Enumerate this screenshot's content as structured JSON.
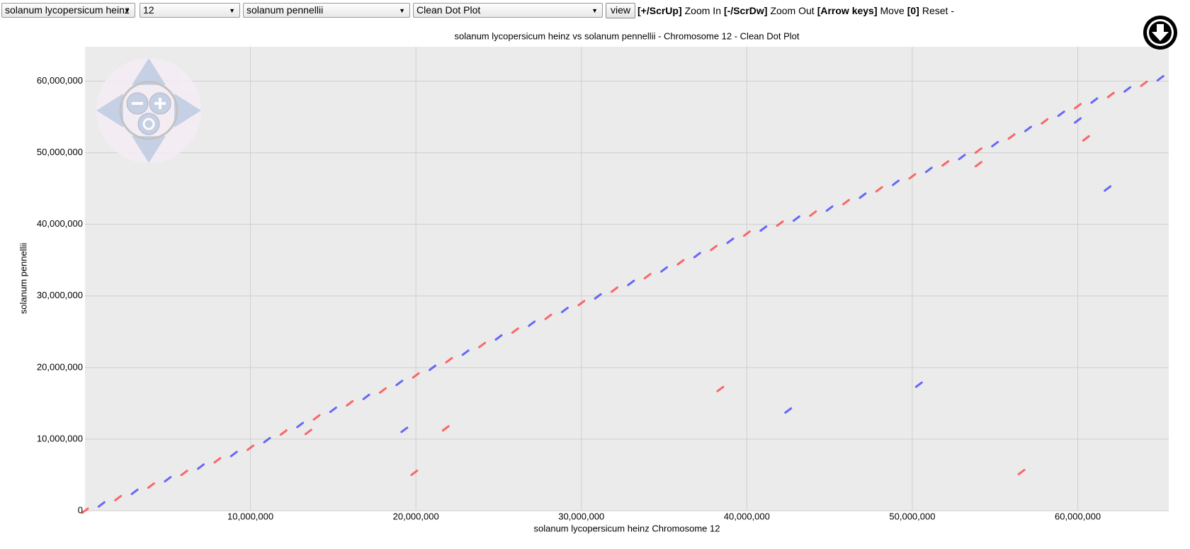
{
  "toolbar": {
    "reference_genome": "solanum lycopersicum heinz",
    "chromosome": "12",
    "query_genome": "solanum pennellii",
    "plot_type": "Clean Dot Plot",
    "button": "view",
    "help": [
      {
        "key": "[+/ScrUp]",
        "action": "Zoom In"
      },
      {
        "key": "[-/ScrDw]",
        "action": "Zoom Out"
      },
      {
        "key": "[Arrow keys]",
        "action": "Move"
      },
      {
        "key": "[0]",
        "action": "Reset -"
      }
    ]
  },
  "chart_data": {
    "type": "scatter",
    "title": "solanum lycopersicum heinz vs solanum pennellii - Chromosome 12 - Clean Dot Plot",
    "x_label": "solanum lycopersicum heinz Chromosome 12",
    "y_label": "solanum pennellii",
    "xlim": [
      0,
      65500000
    ],
    "ylim": [
      0,
      64800000
    ],
    "xticks": [
      {
        "value": 10000000,
        "label": "10,000,000"
      },
      {
        "value": 20000000,
        "label": "20,000,000"
      },
      {
        "value": 30000000,
        "label": "30,000,000"
      },
      {
        "value": 40000000,
        "label": "40,000,000"
      },
      {
        "value": 50000000,
        "label": "50,000,000"
      },
      {
        "value": 60000000,
        "label": "60,000,000"
      }
    ],
    "yticks": [
      0,
      {
        "value": 10000000,
        "label": "10,000,000"
      },
      {
        "value": 20000000,
        "label": "20,000,000"
      },
      {
        "value": 30000000,
        "label": "30,000,000"
      },
      {
        "value": 40000000,
        "label": "40,000,000"
      },
      {
        "value": 50000000,
        "label": "50,000,000"
      },
      {
        "value": 60000000,
        "label": "60,000,000"
      }
    ],
    "grid": true,
    "series": [
      {
        "color": "#ff3b3b",
        "x": [
          0,
          2000000,
          4000000,
          6000000,
          8000000,
          10000000,
          12000000,
          14000000,
          16000000,
          18000000,
          20000000,
          22000000,
          24000000,
          26000000,
          28000000,
          30000000,
          32000000,
          34000000,
          36000000,
          38000000,
          40000000,
          42000000,
          44000000,
          46000000,
          48000000,
          50000000,
          52000000,
          54000000,
          56000000,
          58000000,
          60000000,
          62000000,
          64000000,
          19900000,
          21800000,
          13500000,
          54000000,
          60500000,
          56600000,
          38400000
        ],
        "y": [
          0,
          1760000,
          3520000,
          5280000,
          7040000,
          8800000,
          10920000,
          13040000,
          15000000,
          16800000,
          18900000,
          21020000,
          23140000,
          25160000,
          27080000,
          29000000,
          30880000,
          32760000,
          34700000,
          36700000,
          38700000,
          40100000,
          41500000,
          43100000,
          44900000,
          46700000,
          48500000,
          50300000,
          52260000,
          54380000,
          56500000,
          58060000,
          59620000,
          5300000,
          11500000,
          11000000,
          48400000,
          52000000,
          5400000,
          17000000
        ]
      },
      {
        "color": "#3b3bff",
        "x": [
          1000000,
          3000000,
          5000000,
          7000000,
          9000000,
          11000000,
          13000000,
          15000000,
          17000000,
          19000000,
          21000000,
          23000000,
          25000000,
          27000000,
          29000000,
          31000000,
          33000000,
          35000000,
          37000000,
          39000000,
          41000000,
          43000000,
          45000000,
          47000000,
          49000000,
          51000000,
          53000000,
          55000000,
          57000000,
          59000000,
          61000000,
          63000000,
          65000000,
          19300000,
          50400000,
          61800000,
          42500000,
          60000000
        ],
        "y": [
          880000,
          2640000,
          4400000,
          6160000,
          7920000,
          9860000,
          11980000,
          14100000,
          15900000,
          17850000,
          19960000,
          22080000,
          24200000,
          26120000,
          28040000,
          29940000,
          31820000,
          33700000,
          35700000,
          37700000,
          39400000,
          40800000,
          42200000,
          44000000,
          45800000,
          47600000,
          49400000,
          51200000,
          53320000,
          55440000,
          57280000,
          58840000,
          60400000,
          11300000,
          17600000,
          45000000,
          14000000,
          54500000
        ]
      }
    ]
  }
}
